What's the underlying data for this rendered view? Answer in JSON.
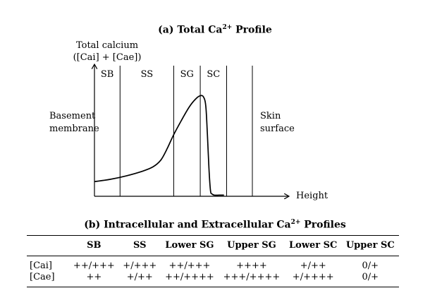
{
  "panel_a": {
    "title": "(a) Total Ca",
    "title_sup": "2+",
    "title_suffix": " Profile",
    "y_label_line1": "Total calcium",
    "y_label_line2": "([Cai] + [Cae])",
    "x_label": "Height",
    "left_label_line1": "Basement",
    "left_label_line2": "membrane",
    "right_label_line1": "Skin",
    "right_label_line2": "surface",
    "regions": [
      "SB",
      "SS",
      "SG",
      "SC"
    ]
  },
  "chart_data": {
    "type": "line",
    "title": "(a) Total Ca2+ Profile",
    "xlabel": "Height",
    "ylabel": "Total calcium ([Cai] + [Cae])",
    "x_domain": [
      0,
      100
    ],
    "y_domain": [
      0,
      100
    ],
    "region_boundaries": [
      0,
      16.2,
      50.2,
      67.0,
      83.7,
      100
    ],
    "region_labels": [
      "SB",
      "SS",
      "SG",
      "SC"
    ],
    "series": [
      {
        "name": "Total calcium",
        "x": [
          0,
          10,
          20,
          30,
          37,
          42,
          46,
          50,
          55,
          60,
          64,
          67,
          69,
          70.5,
          71.5,
          72.5,
          73.5,
          74.5,
          76,
          79,
          82
        ],
        "y": [
          13,
          15,
          18,
          22,
          26,
          32,
          42,
          54,
          67,
          79,
          86,
          89,
          88,
          80,
          55,
          25,
          5,
          2,
          1,
          1,
          1
        ]
      }
    ]
  },
  "panel_b": {
    "title": "(b) Intracellular and Extracellular Ca",
    "title_sup": "2+",
    "title_suffix": " Profiles",
    "columns": [
      "",
      "SB",
      "SS",
      "Lower SG",
      "Upper SG",
      "Lower SC",
      "Upper SC"
    ],
    "rows": [
      {
        "label": "[Cai]",
        "cells": [
          "++/+++",
          "+/+++",
          "++/+++",
          "++++",
          "+/++",
          "0/+"
        ]
      },
      {
        "label": "[Cae]",
        "cells": [
          "++",
          "+/++",
          "++/++++",
          "+++/++++",
          "+/++++",
          "0/+"
        ]
      }
    ]
  }
}
